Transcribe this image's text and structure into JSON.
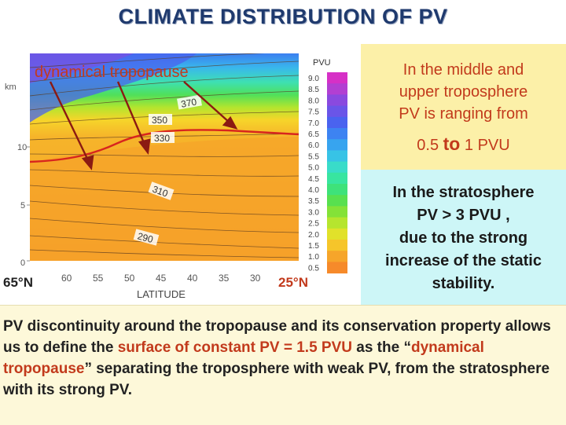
{
  "title": "CLIMATE DISTRIBUTION OF PV",
  "plot": {
    "y_unit": "km",
    "y_ticks": [
      "10",
      "5",
      "0"
    ],
    "x_ticks": [
      "60",
      "55",
      "50",
      "45",
      "40",
      "35",
      "30"
    ],
    "x_label": "LATITUDE",
    "lat_left": "65°N",
    "lat_right": "25°N",
    "tropopause_label": "dynamical tropopause",
    "theta_labels": [
      "370",
      "350",
      "330",
      "310",
      "290"
    ],
    "colorbar_title": "PVU",
    "colorbar_ticks": [
      "9.0",
      "8.5",
      "8.0",
      "7.5",
      "7.0",
      "6.5",
      "6.0",
      "5.5",
      "5.0",
      "4.5",
      "4.0",
      "3.5",
      "3.0",
      "2.5",
      "2.0",
      "1.5",
      "1.0",
      "0.5"
    ],
    "colorbar_colors": [
      "#d630c6",
      "#b23fd2",
      "#8a49df",
      "#6a55e8",
      "#4a63ef",
      "#3d83f2",
      "#37a4ef",
      "#37c3e6",
      "#39dcc9",
      "#38e5a0",
      "#3ee27a",
      "#58e04f",
      "#84e238",
      "#b6e52e",
      "#e1e12a",
      "#f6c52a",
      "#f6a52a",
      "#f68a2a"
    ]
  },
  "upper_box": {
    "line1": "In the middle and",
    "line2": "upper  troposphere",
    "line3": "PV is  ranging from",
    "line4_a": "0.5 ",
    "line4_to": "to",
    "line4_b": " 1 PVU",
    "bg_color": "#fcf0a8"
  },
  "strat_box": {
    "line1": "In the stratosphere",
    "line2": "PV > 3 PVU ,",
    "line3": "due to the strong",
    "line4": "increase of the static",
    "line5": "stability.",
    "bg_color": "#cdf6f7"
  },
  "bottom": {
    "t1": "PV discontinuity  around the tropopause and its conservation property allows us to define the ",
    "t2": "surface of constant PV = 1.5 PVU",
    "t3": " as the “",
    "t4": "dynamical tropopause",
    "t5": "” separating the troposphere with weak PV, from the stratosphere with its strong PV."
  }
}
